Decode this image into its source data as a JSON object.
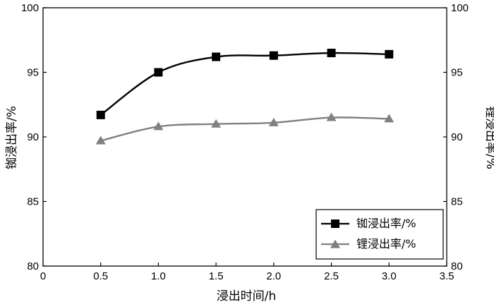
{
  "chart_data": {
    "type": "line",
    "xlabel": "浸出时间/h",
    "ylabel_left": "铷浸出率/%",
    "ylabel_right": "锂浸出率/%",
    "xlim": [
      0,
      3.5
    ],
    "ylim": [
      80,
      100
    ],
    "x_ticks": [
      "0",
      "0.5",
      "1.0",
      "1.5",
      "2.0",
      "2.5",
      "3.0",
      "3.5"
    ],
    "y_ticks": [
      "80",
      "85",
      "90",
      "95",
      "100"
    ],
    "x": [
      0.5,
      1.0,
      1.5,
      2.0,
      2.5,
      3.0
    ],
    "grid": false,
    "legend_position": "bottom-right",
    "series": [
      {
        "name": "铷浸出率/%",
        "marker": "square",
        "color": "#000000",
        "values": [
          91.7,
          95.0,
          96.2,
          96.3,
          96.5,
          96.4
        ]
      },
      {
        "name": "锂浸出率/%",
        "marker": "triangle",
        "color": "#808080",
        "values": [
          89.7,
          90.8,
          91.0,
          91.1,
          91.5,
          91.4
        ]
      }
    ]
  }
}
